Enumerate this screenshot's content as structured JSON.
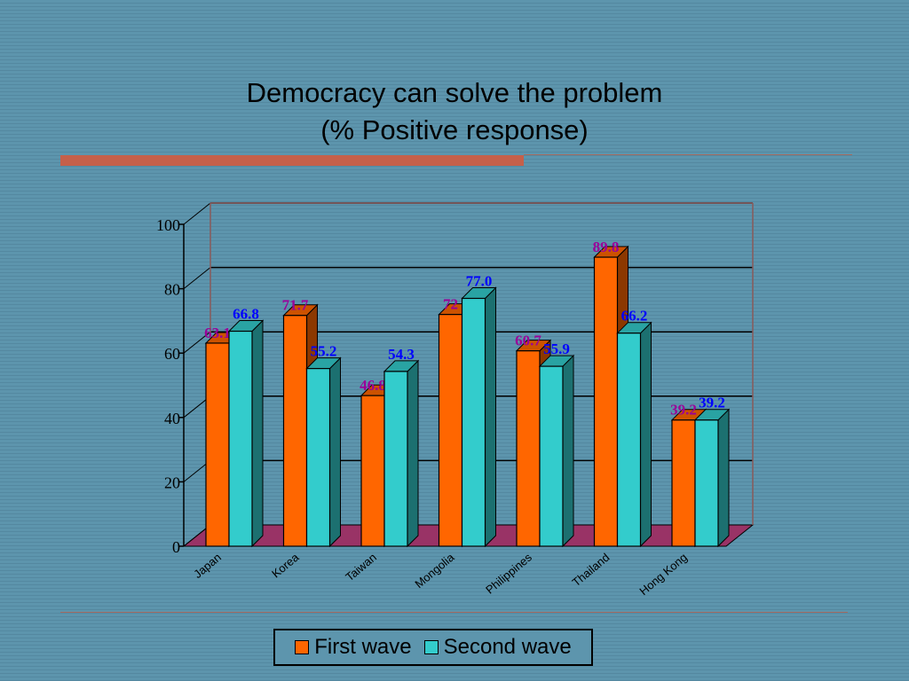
{
  "chart_data": {
    "type": "bar",
    "title": "Democracy can solve the problem",
    "subtitle": "(% Positive response)",
    "categories": [
      "Japan",
      "Korea",
      "Taiwan",
      "Mongolia",
      "Philippines",
      "Thailand",
      "Hong Kong"
    ],
    "series": [
      {
        "name": "First wave",
        "values": [
          63.1,
          71.7,
          46.8,
          72.0,
          60.7,
          89.8,
          39.2
        ],
        "labels": [
          "63.1",
          "71.7",
          "46.8",
          "72",
          "60.7",
          "89.8",
          "39.2"
        ],
        "color": "#ff6600",
        "label_color": "#990099"
      },
      {
        "name": "Second wave",
        "values": [
          66.8,
          55.2,
          54.3,
          77.0,
          55.9,
          66.2,
          39.2
        ],
        "labels": [
          "66.8",
          "55.2",
          "54.3",
          "77.0",
          "55.9",
          "66.2",
          "39.2"
        ],
        "color": "#33cccc",
        "label_color": "#0000ff"
      }
    ],
    "y_ticks": [
      "0",
      "20",
      "40",
      "60",
      "80",
      "100"
    ],
    "ylim": [
      0,
      100
    ],
    "grid": true,
    "legend_position": "bottom",
    "floor_color": "#993366"
  }
}
